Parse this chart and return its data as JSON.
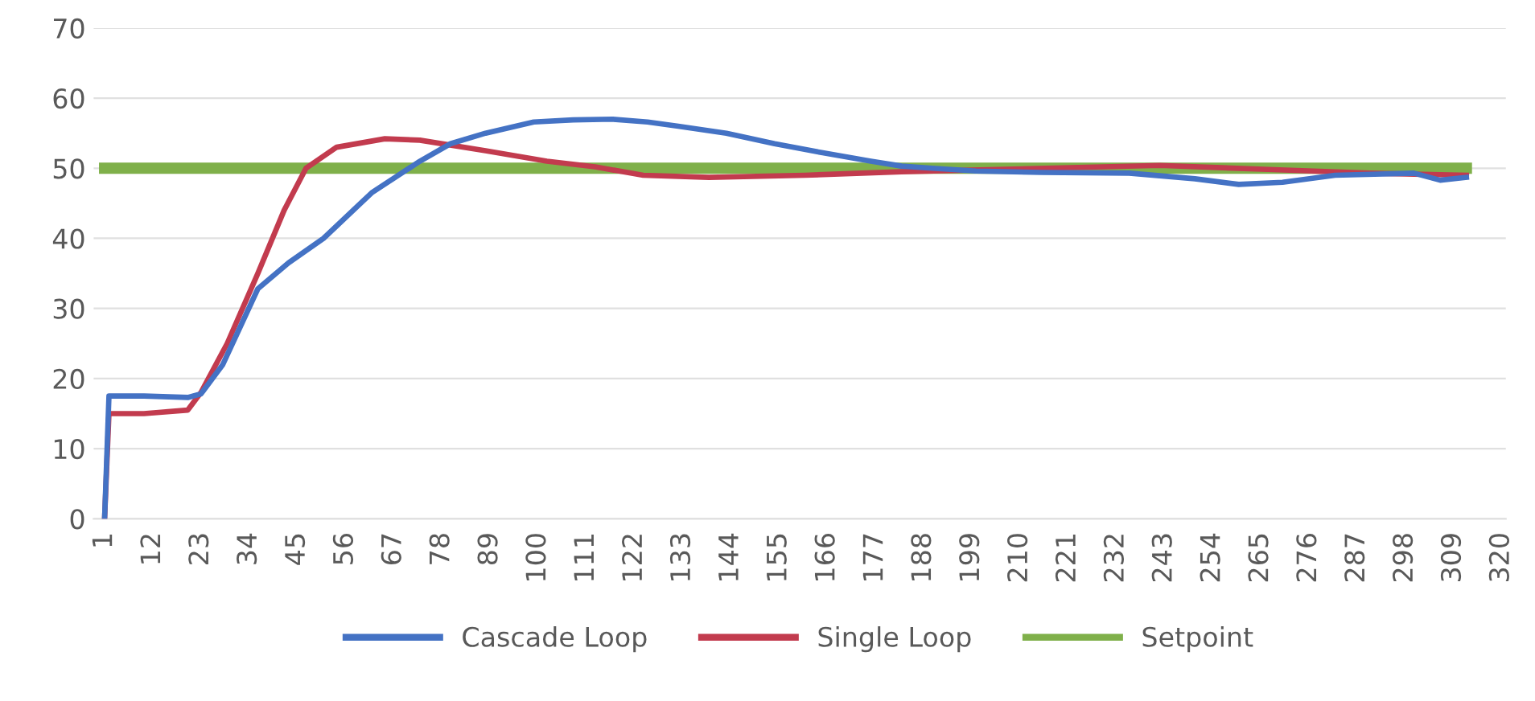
{
  "chart_data": {
    "type": "line",
    "xlim": [
      -1.5,
      321
    ],
    "xticks": [
      1,
      12,
      23,
      34,
      45,
      56,
      67,
      78,
      89,
      100,
      111,
      122,
      133,
      144,
      155,
      166,
      177,
      188,
      199,
      210,
      221,
      232,
      243,
      254,
      265,
      276,
      287,
      298,
      309,
      320
    ],
    "ylim": [
      0,
      70
    ],
    "yticks": [
      0,
      10,
      20,
      30,
      40,
      50,
      60,
      70
    ],
    "grid": "y",
    "legend": "bottom",
    "line_style": "solid",
    "marker": "none",
    "series": [
      {
        "name": "Cascade Loop",
        "color": "#4472c4",
        "x": [
          1,
          2,
          10,
          20,
          23,
          28,
          36,
          43,
          51,
          62,
          73,
          80,
          88,
          99,
          108,
          117,
          125,
          132,
          143,
          154,
          165,
          176,
          183,
          190,
          200,
          215,
          235,
          250,
          260,
          270,
          282,
          300,
          306,
          312
        ],
        "values": [
          0,
          17.5,
          17.5,
          17.3,
          17.8,
          22,
          32.8,
          36.5,
          40,
          46.5,
          51,
          53.5,
          55,
          56.6,
          56.9,
          57,
          56.6,
          56,
          55,
          53.5,
          52.2,
          51,
          50.3,
          50,
          49.6,
          49.4,
          49.3,
          48.5,
          47.7,
          48,
          49,
          49.3,
          48.3,
          48.7
        ]
      },
      {
        "name": "Single Loop",
        "color": "#c23b4e",
        "x": [
          1,
          2,
          10,
          20,
          23,
          29,
          36,
          42,
          47,
          54,
          65,
          73,
          88,
          102,
          113,
          124,
          139,
          161,
          183,
          216,
          242,
          268,
          290,
          312
        ],
        "values": [
          0,
          15,
          15,
          15.5,
          18,
          25,
          35,
          44,
          50,
          53,
          54.2,
          54,
          52.5,
          51,
          50.2,
          49,
          48.7,
          49,
          49.5,
          50,
          50.4,
          49.8,
          49.3,
          49
        ]
      },
      {
        "name": "Setpoint",
        "color": "#7fb04a",
        "x": [
          1,
          312
        ],
        "values": [
          50,
          50
        ]
      }
    ]
  }
}
